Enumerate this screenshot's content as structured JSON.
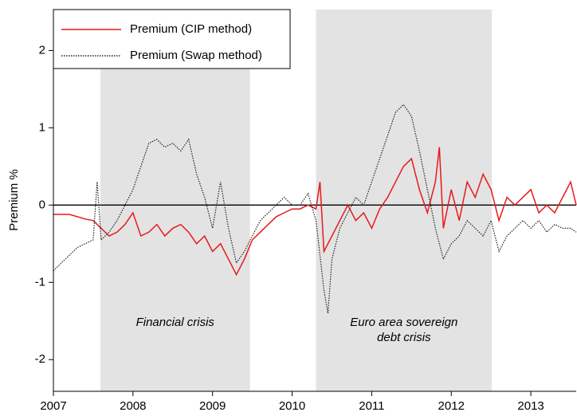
{
  "chart_data": {
    "type": "line",
    "ylabel": "Premium %",
    "xlim": [
      2007,
      2013.57
    ],
    "ylim": [
      -2.41,
      2.53
    ],
    "xticks": [
      2007,
      2008,
      2009,
      2010,
      2011,
      2012,
      2013
    ],
    "yticks": [
      -2,
      -1,
      0,
      1,
      2
    ],
    "hline": 0,
    "legend": "upper left",
    "shaded_regions": [
      [
        2007.59,
        2009.47
      ],
      [
        2010.3,
        2012.51
      ]
    ],
    "shade_color": "#e3e3e3",
    "annotations": [
      [
        "Financial crisis"
      ],
      [
        "Euro area sovereign",
        "debt crisis"
      ]
    ],
    "series": [
      {
        "name": "Premium (CIP method)",
        "color": "#e8191b",
        "dash": "solid",
        "x": [
          2007.0,
          2007.1,
          2007.2,
          2007.3,
          2007.4,
          2007.5,
          2007.6,
          2007.7,
          2007.8,
          2007.9,
          2008.0,
          2008.1,
          2008.2,
          2008.3,
          2008.4,
          2008.5,
          2008.6,
          2008.7,
          2008.8,
          2008.9,
          2009.0,
          2009.1,
          2009.2,
          2009.3,
          2009.4,
          2009.5,
          2009.6,
          2009.7,
          2009.8,
          2009.9,
          2010.0,
          2010.1,
          2010.2,
          2010.3,
          2010.35,
          2010.4,
          2010.5,
          2010.6,
          2010.7,
          2010.8,
          2010.9,
          2011.0,
          2011.1,
          2011.2,
          2011.3,
          2011.4,
          2011.5,
          2011.6,
          2011.7,
          2011.8,
          2011.85,
          2011.9,
          2012.0,
          2012.1,
          2012.2,
          2012.3,
          2012.4,
          2012.5,
          2012.6,
          2012.7,
          2012.8,
          2012.9,
          2013.0,
          2013.1,
          2013.2,
          2013.3,
          2013.4,
          2013.5,
          2013.57
        ],
        "values": [
          -0.12,
          -0.12,
          -0.12,
          -0.15,
          -0.18,
          -0.2,
          -0.3,
          -0.4,
          -0.35,
          -0.25,
          -0.1,
          -0.4,
          -0.35,
          -0.25,
          -0.4,
          -0.3,
          -0.25,
          -0.35,
          -0.5,
          -0.4,
          -0.6,
          -0.5,
          -0.7,
          -0.9,
          -0.7,
          -0.45,
          -0.35,
          -0.25,
          -0.15,
          -0.1,
          -0.05,
          -0.05,
          0,
          -0.05,
          0.3,
          -0.6,
          -0.4,
          -0.2,
          0,
          -0.2,
          -0.1,
          -0.3,
          -0.05,
          0.1,
          0.3,
          0.5,
          0.6,
          0.2,
          -0.1,
          0.3,
          0.75,
          -0.3,
          0.2,
          -0.2,
          0.3,
          0.1,
          0.4,
          0.2,
          -0.2,
          0.1,
          0,
          0.1,
          0.2,
          -0.1,
          0,
          -0.1,
          0.1,
          0.3,
          0
        ]
      },
      {
        "name": "Premium (Swap method)",
        "color": "#222222",
        "dash": "dotted",
        "x": [
          2007.0,
          2007.1,
          2007.2,
          2007.3,
          2007.4,
          2007.5,
          2007.55,
          2007.6,
          2007.7,
          2007.8,
          2007.9,
          2008.0,
          2008.1,
          2008.2,
          2008.3,
          2008.4,
          2008.5,
          2008.6,
          2008.7,
          2008.8,
          2008.9,
          2009.0,
          2009.1,
          2009.2,
          2009.3,
          2009.4,
          2009.5,
          2009.6,
          2009.7,
          2009.8,
          2009.9,
          2010.0,
          2010.1,
          2010.2,
          2010.3,
          2010.4,
          2010.45,
          2010.5,
          2010.6,
          2010.7,
          2010.8,
          2010.9,
          2011.0,
          2011.1,
          2011.2,
          2011.3,
          2011.4,
          2011.5,
          2011.6,
          2011.7,
          2011.8,
          2011.9,
          2012.0,
          2012.1,
          2012.2,
          2012.3,
          2012.4,
          2012.5,
          2012.6,
          2012.7,
          2012.8,
          2012.9,
          2013.0,
          2013.1,
          2013.2,
          2013.3,
          2013.4,
          2013.5,
          2013.57
        ],
        "values": [
          -0.85,
          -0.75,
          -0.65,
          -0.55,
          -0.5,
          -0.45,
          0.3,
          -0.45,
          -0.35,
          -0.2,
          0,
          0.2,
          0.5,
          0.8,
          0.85,
          0.75,
          0.8,
          0.7,
          0.85,
          0.4,
          0.1,
          -0.3,
          0.3,
          -0.3,
          -0.75,
          -0.6,
          -0.4,
          -0.2,
          -0.1,
          0,
          0.1,
          0,
          0,
          0.15,
          -0.2,
          -1.1,
          -1.4,
          -0.7,
          -0.3,
          -0.1,
          0.1,
          0,
          0.3,
          0.6,
          0.9,
          1.2,
          1.3,
          1.15,
          0.7,
          0.2,
          -0.3,
          -0.7,
          -0.5,
          -0.4,
          -0.2,
          -0.3,
          -0.4,
          -0.2,
          -0.6,
          -0.4,
          -0.3,
          -0.2,
          -0.3,
          -0.2,
          -0.35,
          -0.25,
          -0.3,
          -0.3,
          -0.35
        ]
      }
    ]
  }
}
